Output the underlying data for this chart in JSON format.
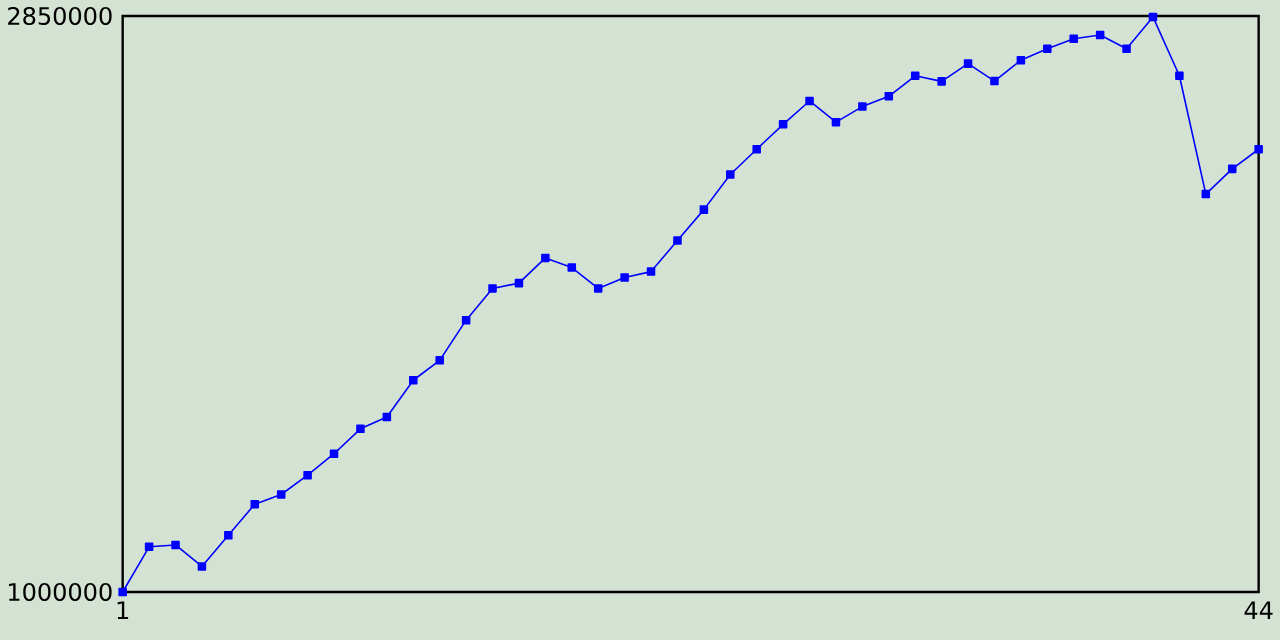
{
  "chart_data": {
    "type": "line",
    "x": [
      1,
      2,
      3,
      4,
      5,
      6,
      7,
      8,
      9,
      10,
      11,
      12,
      13,
      14,
      15,
      16,
      17,
      18,
      19,
      20,
      21,
      22,
      23,
      24,
      25,
      26,
      27,
      28,
      29,
      30,
      31,
      32,
      33,
      34,
      35,
      36,
      37,
      38,
      39,
      40,
      41,
      42,
      43,
      44
    ],
    "series": [
      {
        "color": "#0000ff",
        "values": [
          1000000,
          1145000,
          1151000,
          1082000,
          1182000,
          1282000,
          1313000,
          1375000,
          1444000,
          1524000,
          1562000,
          1680000,
          1744000,
          1873000,
          1975000,
          1992000,
          2073000,
          2042000,
          1975000,
          2010000,
          2029000,
          2129000,
          2228000,
          2341000,
          2422000,
          2502000,
          2577000,
          2509000,
          2559000,
          2592000,
          2658000,
          2640000,
          2697000,
          2641000,
          2708000,
          2745000,
          2777000,
          2789000,
          2745000,
          2847000,
          2658000,
          2278000,
          2359000,
          2422000
        ]
      }
    ],
    "xlim": [
      1,
      44
    ],
    "xticks": [
      1,
      44
    ],
    "ylim": [
      1000000,
      2850000
    ],
    "yticks": [
      1000000,
      2850000
    ],
    "marker": "square",
    "line_style": "solid"
  }
}
